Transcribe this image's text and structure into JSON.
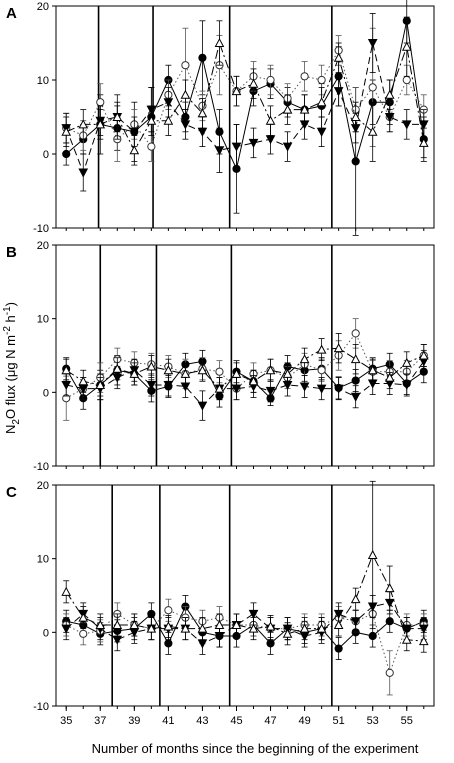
{
  "figure": {
    "ylabel_prefix": "N",
    "ylabel_sub": "2",
    "ylabel_mid": "O flux (μg N m",
    "ylabel_sup1": "-2",
    "ylabel_gap": " h",
    "ylabel_sup2": "-1",
    "ylabel_end": ")",
    "xlabel": "Number of months since the beginning of the experiment"
  },
  "chart_data": [
    {
      "type": "line",
      "panel_label": "A",
      "x": [
        35,
        36,
        37,
        38,
        39,
        40,
        41,
        42,
        43,
        44,
        45,
        46,
        47,
        48,
        49,
        50,
        51,
        52,
        53,
        54,
        55,
        56
      ],
      "xticks": [
        "35",
        "37",
        "39",
        "41",
        "43",
        "45",
        "47",
        "49",
        "51",
        "53",
        "55"
      ],
      "ylim": [
        -10,
        20
      ],
      "yticks": [
        "-10",
        "0",
        "10",
        "20"
      ],
      "vlines": [
        36.9,
        40.1,
        44.6,
        50.6
      ],
      "series": [
        {
          "marker": "filled-circle",
          "dash": "solid",
          "values": [
            0.0,
            2.0,
            4.0,
            3.5,
            3.0,
            5.0,
            10.0,
            5.0,
            13.0,
            3.0,
            -2.0,
            8.5,
            9.5,
            7.0,
            6.0,
            6.5,
            10.5,
            -1.0,
            7.0,
            7.0,
            18.0,
            2.0
          ],
          "errors": [
            1.5,
            2.0,
            4.0,
            3.0,
            4.0,
            4.0,
            2.0,
            2.0,
            5.0,
            3.0,
            6.0,
            2.0,
            2.0,
            2.0,
            2.0,
            3.0,
            4.0,
            10.0,
            3.0,
            3.0,
            3.0,
            3.0
          ]
        },
        {
          "marker": "open-circle",
          "dash": "dotted",
          "values": [
            3.5,
            2.5,
            7.0,
            2.0,
            4.0,
            1.0,
            8.0,
            12.0,
            6.5,
            12.0,
            8.5,
            10.5,
            10.0,
            7.5,
            10.5,
            10.0,
            14.0,
            6.0,
            9.0,
            5.0,
            10.0,
            6.0
          ],
          "errors": [
            2.0,
            2.0,
            2.5,
            3.0,
            2.0,
            2.0,
            2.0,
            5.0,
            2.0,
            4.0,
            2.0,
            2.0,
            2.0,
            2.0,
            2.0,
            2.0,
            2.0,
            3.0,
            8.0,
            2.0,
            2.0,
            2.0
          ]
        },
        {
          "marker": "filled-triangle-down",
          "dash": "dashed",
          "values": [
            3.5,
            -2.5,
            4.5,
            5.0,
            3.0,
            6.0,
            7.0,
            4.0,
            3.0,
            0.5,
            1.0,
            1.5,
            2.0,
            1.0,
            4.0,
            3.0,
            8.5,
            3.5,
            15.0,
            5.0,
            4.0,
            4.0
          ],
          "errors": [
            2.0,
            2.5,
            2.0,
            3.0,
            2.0,
            3.0,
            2.0,
            2.0,
            2.0,
            3.0,
            3.0,
            2.0,
            2.0,
            2.0,
            2.0,
            2.0,
            2.0,
            2.0,
            4.0,
            2.0,
            2.0,
            2.0
          ]
        },
        {
          "marker": "open-triangle-up",
          "dash": "dash-dot",
          "values": [
            3.0,
            4.0,
            4.0,
            5.0,
            0.5,
            4.5,
            4.5,
            8.0,
            5.5,
            15.0,
            8.5,
            9.5,
            4.5,
            6.0,
            6.0,
            7.0,
            13.0,
            5.0,
            3.0,
            8.0,
            14.5,
            1.5
          ],
          "errors": [
            2.0,
            2.0,
            2.0,
            2.0,
            2.0,
            2.0,
            2.0,
            2.0,
            2.0,
            3.0,
            2.0,
            2.0,
            2.0,
            2.0,
            2.0,
            2.0,
            2.0,
            2.0,
            4.0,
            2.0,
            4.0,
            2.0
          ]
        }
      ]
    },
    {
      "type": "line",
      "panel_label": "B",
      "x": [
        35,
        36,
        37,
        38,
        39,
        40,
        41,
        42,
        43,
        44,
        45,
        46,
        47,
        48,
        49,
        50,
        51,
        52,
        53,
        54,
        55,
        56
      ],
      "xticks": [
        "35",
        "37",
        "39",
        "41",
        "43",
        "45",
        "47",
        "49",
        "51",
        "53",
        "55"
      ],
      "ylim": [
        -10,
        20
      ],
      "yticks": [
        "-10",
        "0",
        "10",
        "20"
      ],
      "vlines": [
        37.0,
        40.3,
        44.7,
        50.6
      ],
      "series": [
        {
          "marker": "filled-circle",
          "dash": "solid",
          "values": [
            3.2,
            -0.8,
            1.0,
            3.0,
            2.5,
            0.2,
            0.8,
            3.8,
            4.2,
            -0.5,
            2.8,
            1.5,
            -0.8,
            3.5,
            3.0,
            3.2,
            0.6,
            1.6,
            3.2,
            3.8,
            1.2,
            2.8
          ],
          "errors": [
            1.5,
            1.5,
            2.0,
            2.0,
            1.5,
            1.5,
            1.5,
            1.5,
            1.5,
            1.5,
            1.5,
            1.5,
            1.0,
            1.5,
            1.5,
            1.5,
            1.5,
            1.5,
            1.5,
            1.5,
            1.5,
            1.5
          ]
        },
        {
          "marker": "open-circle",
          "dash": "dotted",
          "values": [
            -0.8,
            0.5,
            2.0,
            4.5,
            4.0,
            3.8,
            3.5,
            2.5,
            3.2,
            2.8,
            0.5,
            2.5,
            3.0,
            2.0,
            3.8,
            3.0,
            5.0,
            8.0,
            2.8,
            2.8,
            2.8,
            5.0
          ],
          "errors": [
            3.0,
            1.5,
            2.0,
            1.5,
            1.5,
            1.5,
            1.5,
            2.0,
            1.5,
            1.5,
            1.5,
            1.5,
            1.5,
            1.5,
            1.5,
            1.5,
            2.0,
            2.0,
            1.5,
            1.5,
            1.5,
            1.5
          ]
        },
        {
          "marker": "filled-triangle-down",
          "dash": "dashed",
          "values": [
            1.0,
            0.5,
            0.5,
            2.0,
            3.0,
            1.0,
            1.0,
            0.8,
            -1.8,
            0.5,
            0.5,
            0.8,
            0.2,
            1.0,
            0.8,
            0.5,
            0.5,
            -0.6,
            1.2,
            1.2,
            1.0,
            4.2
          ],
          "errors": [
            1.5,
            1.5,
            1.5,
            1.5,
            1.5,
            1.5,
            1.5,
            1.5,
            2.0,
            1.5,
            1.5,
            1.5,
            1.5,
            1.5,
            1.5,
            1.5,
            1.5,
            1.5,
            1.5,
            1.5,
            1.5,
            1.5
          ]
        },
        {
          "marker": "open-triangle-up",
          "dash": "dash-dot",
          "values": [
            3.0,
            1.5,
            1.0,
            3.2,
            2.5,
            3.5,
            3.0,
            2.5,
            3.0,
            0.5,
            2.5,
            1.5,
            3.0,
            2.5,
            4.5,
            5.8,
            6.0,
            4.5,
            3.0,
            2.0,
            4.0,
            5.0
          ],
          "errors": [
            1.5,
            1.5,
            1.5,
            1.5,
            1.5,
            1.5,
            1.5,
            1.5,
            1.5,
            1.5,
            1.5,
            1.5,
            1.5,
            1.5,
            1.5,
            1.5,
            2.0,
            2.0,
            1.5,
            1.5,
            1.5,
            1.5
          ]
        }
      ]
    },
    {
      "type": "line",
      "panel_label": "C",
      "x": [
        35,
        36,
        37,
        38,
        39,
        40,
        41,
        42,
        43,
        44,
        45,
        46,
        47,
        48,
        49,
        50,
        51,
        52,
        53,
        54,
        55,
        56
      ],
      "xticks": [
        "35",
        "37",
        "39",
        "41",
        "43",
        "45",
        "47",
        "49",
        "51",
        "53",
        "55"
      ],
      "ylim": [
        -10,
        20
      ],
      "yticks": [
        "-10",
        "0",
        "10",
        "20"
      ],
      "vlines": [
        37.7,
        40.5,
        44.6,
        50.6
      ],
      "series": [
        {
          "marker": "filled-circle",
          "dash": "solid",
          "values": [
            1.5,
            1.0,
            -0.2,
            0.2,
            0.5,
            2.5,
            -1.5,
            3.5,
            0.0,
            -0.5,
            -0.5,
            1.0,
            -1.5,
            0.5,
            0.0,
            0.5,
            -2.2,
            0.0,
            -0.5,
            1.5,
            0.5,
            1.5
          ],
          "errors": [
            1.5,
            1.5,
            1.5,
            1.5,
            1.5,
            1.5,
            1.5,
            1.5,
            1.5,
            1.5,
            1.5,
            1.5,
            1.5,
            1.5,
            1.5,
            1.5,
            1.5,
            1.5,
            1.5,
            1.5,
            1.5,
            1.5
          ]
        },
        {
          "marker": "open-circle",
          "dash": "dotted",
          "values": [
            1.0,
            -0.2,
            0.2,
            2.5,
            1.0,
            0.5,
            3.0,
            2.0,
            1.5,
            2.0,
            1.0,
            1.0,
            0.5,
            0.5,
            1.0,
            1.0,
            2.0,
            1.5,
            2.5,
            -5.5,
            1.0,
            1.0
          ],
          "errors": [
            1.5,
            1.5,
            1.5,
            1.5,
            1.5,
            1.5,
            1.5,
            1.5,
            1.5,
            1.5,
            1.5,
            1.5,
            1.5,
            1.5,
            1.5,
            1.5,
            1.5,
            1.5,
            1.5,
            3.0,
            1.5,
            1.5
          ]
        },
        {
          "marker": "filled-triangle-down",
          "dash": "dashed",
          "values": [
            0.5,
            2.5,
            0.5,
            -1.0,
            0.0,
            0.5,
            0.5,
            0.5,
            -1.5,
            -0.5,
            1.0,
            2.5,
            0.5,
            0.5,
            -0.5,
            0.0,
            2.5,
            1.5,
            3.5,
            4.0,
            0.5,
            0.5
          ],
          "errors": [
            1.5,
            1.5,
            1.5,
            1.5,
            1.5,
            1.5,
            1.5,
            1.5,
            1.5,
            1.5,
            1.5,
            1.5,
            1.5,
            1.5,
            1.5,
            1.5,
            1.5,
            1.5,
            1.5,
            1.5,
            1.5,
            1.5
          ]
        },
        {
          "marker": "open-triangle-up",
          "dash": "dash-dot",
          "values": [
            5.5,
            2.0,
            1.0,
            1.0,
            1.0,
            0.5,
            0.8,
            0.5,
            0.5,
            1.0,
            1.0,
            0.5,
            0.8,
            -0.2,
            0.5,
            0.5,
            1.0,
            4.5,
            10.5,
            6.0,
            -1.0,
            -1.2
          ],
          "errors": [
            1.5,
            1.5,
            1.5,
            1.5,
            1.5,
            1.5,
            1.5,
            1.5,
            1.5,
            1.5,
            1.5,
            1.5,
            1.5,
            1.5,
            1.5,
            1.5,
            1.5,
            1.5,
            10.0,
            3.0,
            1.5,
            1.5
          ]
        }
      ]
    }
  ]
}
